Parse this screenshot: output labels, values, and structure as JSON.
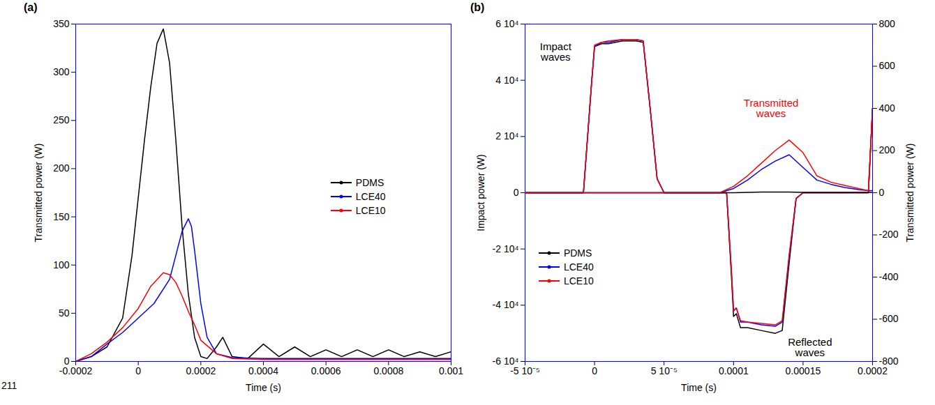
{
  "line_number": "211",
  "chart_data": [
    {
      "type": "line",
      "title": "(a)",
      "x_label": "Time (s)",
      "y_label": "Transmitted power (W)",
      "xlim": [
        -0.0002,
        0.001
      ],
      "xticks": [
        -0.0002,
        0,
        0.0002,
        0.0004,
        0.0006,
        0.0008,
        0.001
      ],
      "ylim": [
        0,
        350
      ],
      "yticks": [
        0,
        50,
        100,
        150,
        200,
        250,
        300,
        350
      ],
      "legend": "right",
      "series": [
        {
          "name": "PDMS",
          "color": "#000000",
          "x": [
            -0.0002,
            -0.00015,
            -0.0001,
            -5e-05,
            -2e-05,
            0,
            2e-05,
            4e-05,
            6e-05,
            8e-05,
            0.0001,
            0.00012,
            0.00014,
            0.00016,
            0.00018,
            0.0002,
            0.00022,
            0.00025,
            0.00027,
            0.0003,
            0.00035,
            0.0004,
            0.00045,
            0.0005,
            0.00055,
            0.0006,
            0.00065,
            0.0007,
            0.00075,
            0.0008,
            0.00085,
            0.0009,
            0.00095,
            0.001
          ],
          "values": [
            0,
            5,
            15,
            45,
            110,
            170,
            230,
            285,
            330,
            345,
            310,
            230,
            140,
            70,
            25,
            5,
            3,
            15,
            25,
            5,
            3,
            18,
            5,
            15,
            5,
            12,
            5,
            12,
            5,
            12,
            5,
            10,
            5,
            10
          ]
        },
        {
          "name": "LCE40",
          "color": "#0000ff",
          "x": [
            -0.0002,
            -0.00015,
            -0.0001,
            -5e-05,
            0,
            5e-05,
            0.0001,
            0.00012,
            0.00014,
            0.00016,
            0.00017,
            0.00018,
            0.0002,
            0.00022,
            0.00025,
            0.0003,
            0.0004,
            0.0006,
            0.0008,
            0.001
          ],
          "values": [
            0,
            5,
            18,
            30,
            45,
            60,
            85,
            110,
            135,
            148,
            140,
            115,
            60,
            25,
            8,
            4,
            3,
            3,
            3,
            3
          ]
        },
        {
          "name": "LCE10",
          "color": "#ff0000",
          "x": [
            -0.0002,
            -0.00015,
            -0.0001,
            -5e-05,
            0,
            4e-05,
            8e-05,
            0.0001,
            0.00012,
            0.00014,
            0.00016,
            0.00018,
            0.0002,
            0.00025,
            0.0003,
            0.0004,
            0.0006,
            0.0008,
            0.001
          ],
          "values": [
            0,
            8,
            20,
            35,
            55,
            78,
            92,
            90,
            82,
            68,
            52,
            38,
            22,
            8,
            3,
            2,
            2,
            2,
            2
          ]
        }
      ]
    },
    {
      "type": "line",
      "title": "(b)",
      "x_label": "Time (s)",
      "y_label": "Impact power (W)",
      "y2_label": "Transmitted power (W)",
      "xlim": [
        -5e-05,
        0.0002
      ],
      "xticks": [
        {
          "value": -5e-05,
          "label": "-5 10⁻⁵"
        },
        0,
        {
          "value": 5e-05,
          "label": "5 10⁻⁵"
        },
        0.0001,
        0.00015,
        0.0002
      ],
      "ylim": [
        -60000,
        60000
      ],
      "yticks": [
        {
          "value": -60000,
          "label": "-6 10⁴"
        },
        {
          "value": -40000,
          "label": "-4 10⁴"
        },
        {
          "value": -20000,
          "label": "-2 10⁴"
        },
        0,
        {
          "value": 20000,
          "label": "2 10⁴"
        },
        {
          "value": 40000,
          "label": "4 10⁴"
        },
        {
          "value": 60000,
          "label": "6 10⁴"
        }
      ],
      "y2lim": [
        -800,
        800
      ],
      "y2ticks": [
        -800,
        -600,
        -400,
        -200,
        0,
        200,
        400,
        600,
        800
      ],
      "legend": "lower left",
      "series": [
        {
          "name": "PDMS",
          "color": "#000000",
          "axis": "y",
          "x": [
            -5e-05,
            -8e-06,
            -2e-06,
            0,
            5e-06,
            1e-05,
            2e-05,
            3e-05,
            3.5e-05,
            4e-05,
            4.5e-05,
            5e-05,
            9.5e-05,
            9.85e-05,
            0.0001,
            0.000102,
            0.000105,
            0.00011,
            0.00012,
            0.00013,
            0.000135,
            0.00014,
            0.000145,
            0.00015,
            0.000197,
            0.0002
          ],
          "values": [
            0,
            0,
            40000,
            52000,
            53000,
            53000,
            54000,
            54000,
            53500,
            30000,
            5000,
            0,
            0,
            -30000,
            -44000,
            -43000,
            -48000,
            -48000,
            -49000,
            -50000,
            -49000,
            -25000,
            -2000,
            0,
            0,
            30000
          ]
        },
        {
          "name": "LCE40",
          "color": "#0000ff",
          "axis": "y",
          "x": [
            -5e-05,
            -8e-06,
            -2e-06,
            0,
            5e-06,
            1e-05,
            2e-05,
            3e-05,
            3.5e-05,
            4e-05,
            4.5e-05,
            5e-05,
            9.5e-05,
            9.85e-05,
            0.0001,
            0.000102,
            0.000105,
            0.00011,
            0.00012,
            0.00013,
            0.000135,
            0.00014,
            0.000145,
            0.00015,
            0.000197,
            0.0002
          ],
          "values": [
            0,
            0,
            40000,
            52000,
            53500,
            53500,
            54500,
            54500,
            54000,
            30000,
            5000,
            0,
            0,
            -28000,
            -42000,
            -41000,
            -46000,
            -46000,
            -47000,
            -47500,
            -46000,
            -23000,
            -2000,
            0,
            0,
            30000
          ]
        },
        {
          "name": "LCE10",
          "color": "#ff0000",
          "axis": "y",
          "x": [
            -5e-05,
            -8e-06,
            -2e-06,
            0,
            5e-06,
            1e-05,
            2e-05,
            3e-05,
            3.5e-05,
            4e-05,
            4.5e-05,
            5e-05,
            9.5e-05,
            9.85e-05,
            0.0001,
            0.000102,
            0.000105,
            0.00011,
            0.00012,
            0.00013,
            0.000135,
            0.00014,
            0.000145,
            0.00015,
            0.000197,
            0.0002
          ],
          "values": [
            0,
            0,
            40000,
            52500,
            53500,
            54000,
            54500,
            54500,
            54000,
            30000,
            5000,
            0,
            0,
            -28000,
            -42000,
            -41000,
            -45500,
            -46000,
            -46500,
            -47000,
            -45500,
            -22000,
            -2000,
            0,
            0,
            30000
          ]
        },
        {
          "name": "PDMS",
          "color": "#000000",
          "axis": "y2",
          "x": [
            -5e-05,
            9e-05,
            0.0001,
            0.00011,
            0.00012,
            0.00013,
            0.00014,
            0.00015,
            0.00016,
            0.00017,
            0.00018,
            0.00019,
            0.000197,
            0.0002
          ],
          "values": [
            0,
            0,
            0,
            2,
            3,
            3,
            3,
            2,
            2,
            2,
            2,
            2,
            2,
            2
          ]
        },
        {
          "name": "LCE40",
          "color": "#0000ff",
          "axis": "y2",
          "x": [
            -5e-05,
            9e-05,
            0.0001,
            0.00011,
            0.00012,
            0.00013,
            0.00014,
            0.00015,
            0.00016,
            0.00017,
            0.00018,
            0.00019,
            0.000197,
            0.0002
          ],
          "values": [
            0,
            0,
            20,
            60,
            110,
            150,
            180,
            120,
            60,
            40,
            25,
            15,
            10,
            10
          ]
        },
        {
          "name": "LCE10",
          "color": "#ff0000",
          "axis": "y2",
          "x": [
            -5e-05,
            9e-05,
            0.0001,
            0.00011,
            0.00012,
            0.00013,
            0.00014,
            0.00015,
            0.00016,
            0.00017,
            0.00018,
            0.00019,
            0.000197,
            0.0002
          ],
          "values": [
            0,
            0,
            30,
            80,
            140,
            200,
            250,
            190,
            80,
            50,
            35,
            20,
            10,
            400
          ]
        }
      ],
      "annotations": [
        {
          "text": "Impact waves",
          "x": -2.8e-05,
          "y": 50000,
          "axis": "y",
          "color": "#000000"
        },
        {
          "text": "Transmitted waves",
          "x": 0.000127,
          "y": 400,
          "axis": "y2",
          "color": "#ff0000"
        },
        {
          "text": "Reflected waves",
          "x": 0.000155,
          "y": -55000,
          "axis": "y",
          "color": "#000000"
        }
      ]
    }
  ]
}
